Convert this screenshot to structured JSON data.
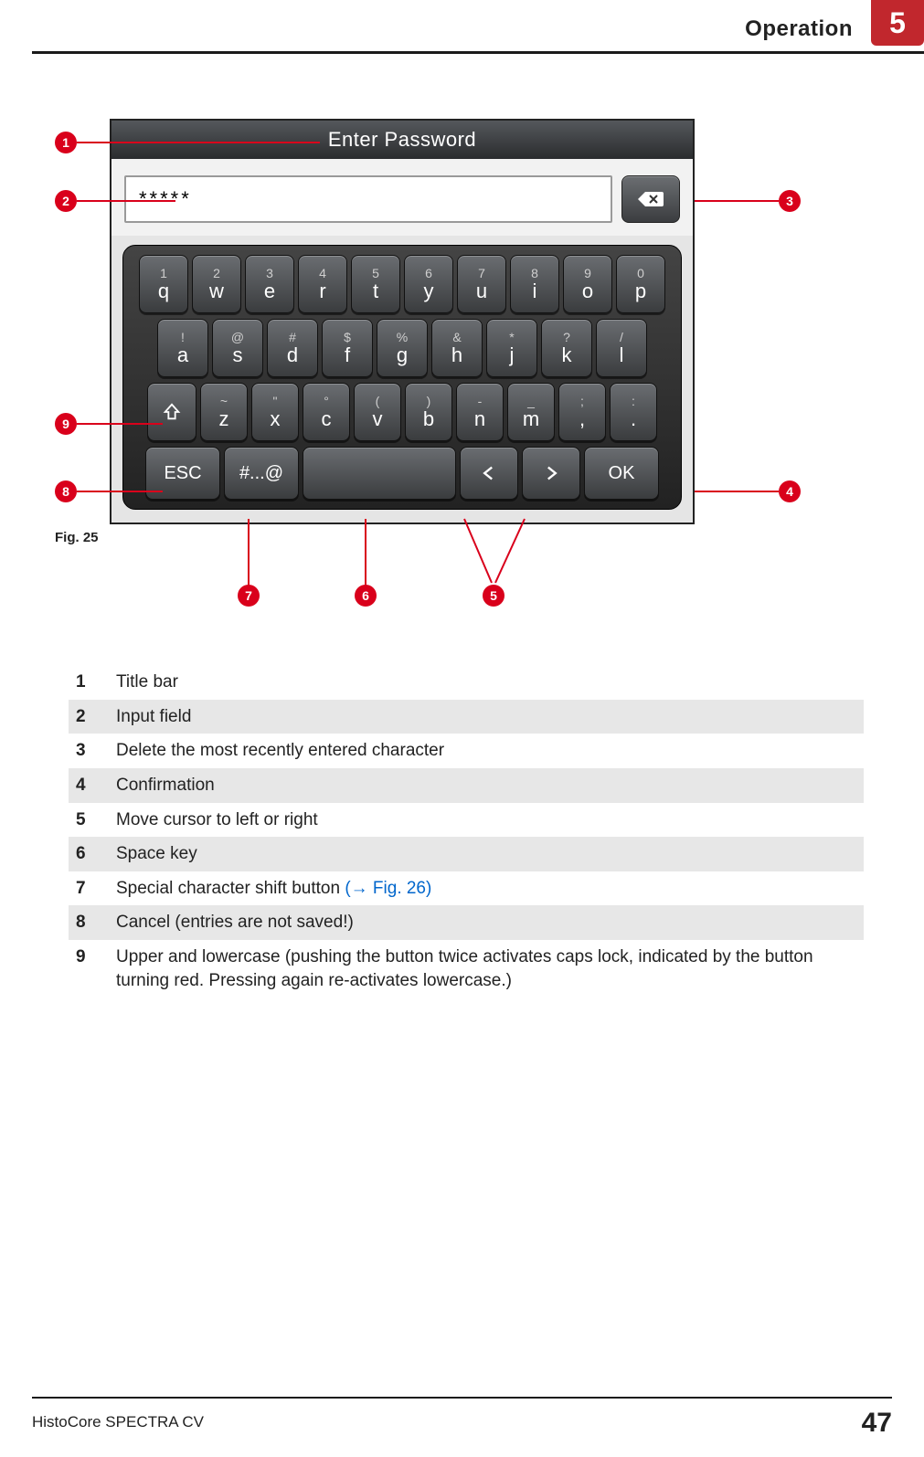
{
  "header": {
    "section": "Operation",
    "chapter": "5"
  },
  "figure": {
    "title": "Enter Password",
    "input_value": "*****",
    "caption": "Fig.  25",
    "rows": {
      "r1": [
        {
          "sup": "1",
          "main": "q"
        },
        {
          "sup": "2",
          "main": "w"
        },
        {
          "sup": "3",
          "main": "e"
        },
        {
          "sup": "4",
          "main": "r"
        },
        {
          "sup": "5",
          "main": "t"
        },
        {
          "sup": "6",
          "main": "y"
        },
        {
          "sup": "7",
          "main": "u"
        },
        {
          "sup": "8",
          "main": "i"
        },
        {
          "sup": "9",
          "main": "o"
        },
        {
          "sup": "0",
          "main": "p"
        }
      ],
      "r2": [
        {
          "sup": "!",
          "main": "a"
        },
        {
          "sup": "@",
          "main": "s"
        },
        {
          "sup": "#",
          "main": "d"
        },
        {
          "sup": "$",
          "main": "f"
        },
        {
          "sup": "%",
          "main": "g"
        },
        {
          "sup": "&",
          "main": "h"
        },
        {
          "sup": "*",
          "main": "j"
        },
        {
          "sup": "?",
          "main": "k"
        },
        {
          "sup": "/",
          "main": "l"
        }
      ],
      "r3": [
        {
          "sup": "~",
          "main": "z"
        },
        {
          "sup": "\"",
          "main": "x"
        },
        {
          "sup": "°",
          "main": "c"
        },
        {
          "sup": "(",
          "main": "v"
        },
        {
          "sup": ")",
          "main": "b"
        },
        {
          "sup": "-",
          "main": "n"
        },
        {
          "sup": "_",
          "main": "m"
        },
        {
          "sup": ";",
          "main": ","
        },
        {
          "sup": ":",
          "main": "."
        }
      ]
    },
    "esc": "ESC",
    "sym": "#...@",
    "ok": "OK"
  },
  "callouts": {
    "c1": "1",
    "c2": "2",
    "c3": "3",
    "c4": "4",
    "c5": "5",
    "c6": "6",
    "c7": "7",
    "c8": "8",
    "c9": "9"
  },
  "legend": [
    {
      "n": "1",
      "t": "Title bar"
    },
    {
      "n": "2",
      "t": "Input field"
    },
    {
      "n": "3",
      "t": "Delete the most recently entered character"
    },
    {
      "n": "4",
      "t": "Confirmation"
    },
    {
      "n": "5",
      "t": "Move cursor to left or right"
    },
    {
      "n": "6",
      "t": "Space key"
    },
    {
      "n": "7",
      "t": "Special character shift button ",
      "ref": "(→ Fig.  26)"
    },
    {
      "n": "8",
      "t": "Cancel (entries are not saved!)"
    },
    {
      "n": "9",
      "t": "Upper and lowercase (pushing the button twice activates caps lock, indicated by the button turning red. Pressing again re-activates lowercase.)"
    }
  ],
  "footer": {
    "product": "HistoCore SPECTRA CV",
    "page": "47"
  },
  "colors": {
    "accent": "#d9001b",
    "link": "#0066cc"
  }
}
